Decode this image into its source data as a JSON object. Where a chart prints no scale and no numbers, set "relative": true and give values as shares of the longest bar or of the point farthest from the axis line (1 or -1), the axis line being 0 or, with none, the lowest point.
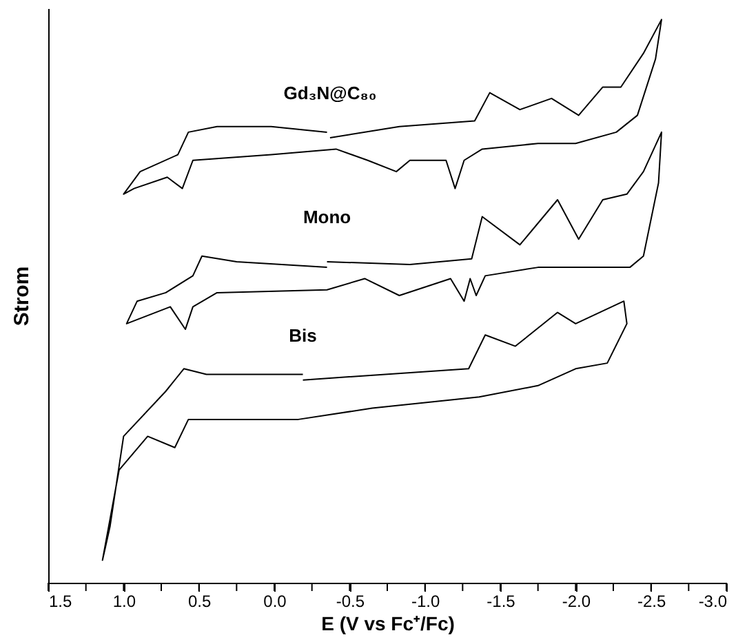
{
  "chart_data": {
    "type": "line",
    "relative": true,
    "xlabel": "E (V vs Fc⁺/Fc)",
    "ylabel": "Strom",
    "xlim": [
      1.5,
      -3.0
    ],
    "xticks": [
      1.5,
      {
        "value": 1.25,
        "label": null
      },
      {
        "value": 1,
        "label": "1.0"
      },
      {
        "value": 0.75,
        "label": null
      },
      0.5,
      {
        "value": 0.25,
        "label": null
      },
      {
        "value": 0,
        "label": "0.0"
      },
      {
        "value": -0.25,
        "label": null
      },
      -0.5,
      {
        "value": -0.75,
        "label": null
      },
      {
        "value": -1,
        "label": "-1.0"
      },
      {
        "value": -1.25,
        "label": null
      },
      -1.5,
      {
        "value": -1.75,
        "label": null
      },
      {
        "value": -2,
        "label": "-2.0"
      },
      {
        "value": -2.25,
        "label": null
      },
      -2.5,
      {
        "value": -2.75,
        "label": null
      },
      {
        "value": -3,
        "label": "-3.0"
      }
    ],
    "grid": false,
    "legend": false,
    "marker": "none",
    "line_style": "solid",
    "series": [
      {
        "name": "Gd₃N@C₈₀",
        "color": "#000000",
        "x": [
          -0.37,
          -0.83,
          -1.33,
          -1.43,
          -1.63,
          -1.84,
          -2.02,
          -2.18,
          -2.3,
          -2.45,
          -2.57,
          -2.53,
          -2.41,
          -2.27,
          -2.0,
          -1.75,
          -1.38,
          -1.26,
          -1.2,
          -1.14,
          -0.9,
          -0.81,
          -0.62,
          -0.41,
          0.02,
          0.54,
          0.61,
          0.71,
          0.93,
          1.0,
          0.89,
          0.64,
          0.57,
          0.38,
          0.02,
          -0.35
        ],
        "values": [
          0.79,
          0.81,
          0.82,
          0.87,
          0.84,
          0.86,
          0.83,
          0.88,
          0.88,
          0.94,
          1.0,
          0.93,
          0.83,
          0.8,
          0.78,
          0.78,
          0.77,
          0.75,
          0.7,
          0.75,
          0.75,
          0.73,
          0.75,
          0.77,
          0.76,
          0.75,
          0.7,
          0.72,
          0.7,
          0.69,
          0.73,
          0.76,
          0.8,
          0.81,
          0.81,
          0.8
        ]
      },
      {
        "name": "Mono",
        "color": "#000000",
        "x": [
          -0.35,
          -0.9,
          -1.31,
          -1.38,
          -1.63,
          -1.88,
          -2.02,
          -2.18,
          -2.34,
          -2.45,
          -2.57,
          -2.55,
          -2.45,
          -2.36,
          -1.75,
          -1.4,
          -1.34,
          -1.3,
          -1.26,
          -1.17,
          -0.83,
          -0.6,
          -0.35,
          0.38,
          0.54,
          0.59,
          0.69,
          0.98,
          0.91,
          0.72,
          0.54,
          0.48,
          0.25,
          -0.35
        ],
        "values": [
          0.57,
          0.565,
          0.575,
          0.65,
          0.6,
          0.68,
          0.61,
          0.68,
          0.69,
          0.73,
          0.8,
          0.71,
          0.58,
          0.56,
          0.56,
          0.545,
          0.51,
          0.54,
          0.5,
          0.54,
          0.51,
          0.54,
          0.52,
          0.515,
          0.49,
          0.45,
          0.49,
          0.46,
          0.5,
          0.515,
          0.545,
          0.58,
          0.57,
          0.56
        ]
      },
      {
        "name": "Bis",
        "color": "#000000",
        "x": [
          -0.19,
          -1.29,
          -1.4,
          -1.6,
          -1.88,
          -2.0,
          -2.32,
          -2.34,
          -2.21,
          -2.0,
          -1.75,
          -1.36,
          -0.65,
          -0.16,
          0.57,
          0.66,
          0.84,
          1.03,
          1.14,
          1.09,
          1.0,
          0.72,
          0.6,
          0.45,
          -0.19
        ],
        "values": [
          0.36,
          0.38,
          0.44,
          0.42,
          0.48,
          0.46,
          0.5,
          0.46,
          0.39,
          0.38,
          0.35,
          0.33,
          0.31,
          0.29,
          0.29,
          0.24,
          0.26,
          0.2,
          0.04,
          0.1,
          0.26,
          0.34,
          0.38,
          0.37,
          0.37
        ]
      }
    ]
  }
}
